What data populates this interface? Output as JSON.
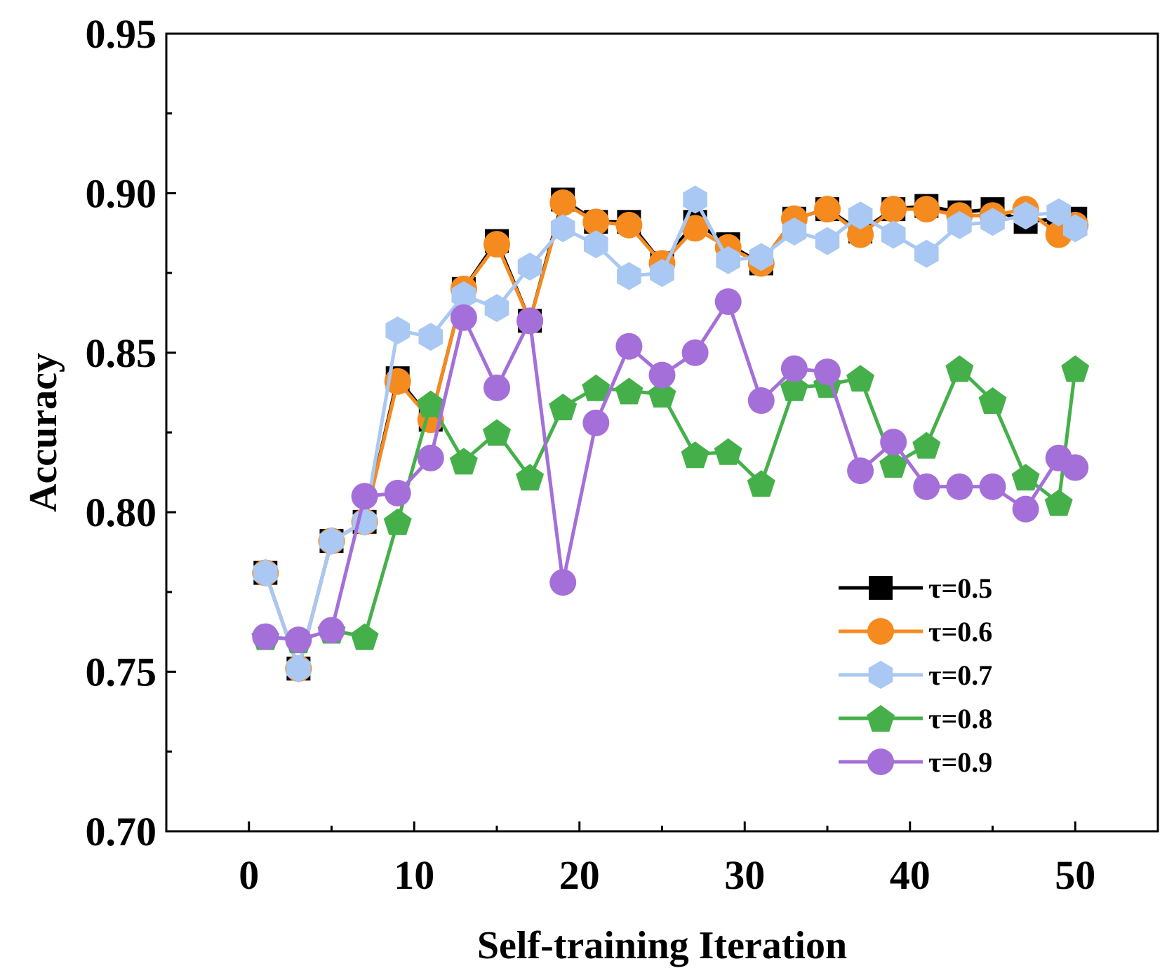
{
  "chart_data": {
    "type": "line",
    "title": "",
    "xlabel": "Self-training Iteration",
    "ylabel": "Accuracy",
    "xlim": [
      -5,
      55
    ],
    "ylim": [
      0.7,
      0.95
    ],
    "xticks": [
      0,
      10,
      20,
      30,
      40,
      50
    ],
    "xtick_labels": [
      "0",
      "10",
      "20",
      "30",
      "40",
      "50"
    ],
    "yticks": [
      0.7,
      0.75,
      0.8,
      0.85,
      0.9,
      0.95
    ],
    "ytick_labels": [
      "0.70",
      "0.75",
      "0.80",
      "0.85",
      "0.90",
      "0.95"
    ],
    "grid": false,
    "legend_position": "bottom-right",
    "x": [
      1,
      3,
      5,
      7,
      9,
      11,
      13,
      15,
      17,
      19,
      21,
      23,
      25,
      27,
      29,
      31,
      33,
      35,
      37,
      39,
      41,
      43,
      45,
      47,
      49,
      50
    ],
    "series": [
      {
        "name": "τ=0.5",
        "marker": "square",
        "color": "#000000",
        "values": [
          0.781,
          0.751,
          0.791,
          0.797,
          0.842,
          0.829,
          0.87,
          0.885,
          0.86,
          0.898,
          0.891,
          0.891,
          0.878,
          0.891,
          0.884,
          0.878,
          0.892,
          0.895,
          0.888,
          0.895,
          0.896,
          0.894,
          0.895,
          0.891,
          0.892,
          0.892
        ]
      },
      {
        "name": "τ=0.6",
        "marker": "circle",
        "color": "#F58A1F",
        "values": [
          0.781,
          0.751,
          0.791,
          0.797,
          0.841,
          0.829,
          0.87,
          0.884,
          0.86,
          0.897,
          0.891,
          0.89,
          0.878,
          0.889,
          0.883,
          0.878,
          0.892,
          0.895,
          0.887,
          0.895,
          0.895,
          0.893,
          0.893,
          0.895,
          0.887,
          0.89
        ]
      },
      {
        "name": "τ=0.7",
        "marker": "hexagon",
        "color": "#A9C8F3",
        "values": [
          0.781,
          0.751,
          0.791,
          0.797,
          0.857,
          0.855,
          0.868,
          0.864,
          0.877,
          0.889,
          0.884,
          0.874,
          0.875,
          0.898,
          0.879,
          0.88,
          0.888,
          0.885,
          0.893,
          0.887,
          0.881,
          0.89,
          0.891,
          0.893,
          0.894,
          0.889
        ]
      },
      {
        "name": "τ=0.8",
        "marker": "pentagon",
        "color": "#45B04A",
        "values": [
          0.761,
          0.76,
          0.763,
          0.761,
          0.797,
          0.834,
          0.816,
          0.825,
          0.811,
          0.833,
          0.839,
          0.838,
          0.837,
          0.818,
          0.819,
          0.809,
          0.839,
          0.84,
          0.842,
          0.815,
          0.821,
          0.845,
          0.835,
          0.811,
          0.803,
          0.845
        ]
      },
      {
        "name": "τ=0.9",
        "marker": "circle",
        "color": "#A46FD9",
        "values": [
          0.761,
          0.76,
          0.763,
          0.805,
          0.806,
          0.817,
          0.861,
          0.839,
          0.86,
          0.778,
          0.828,
          0.852,
          0.843,
          0.85,
          0.866,
          0.835,
          0.845,
          0.844,
          0.813,
          0.822,
          0.808,
          0.808,
          0.808,
          0.801,
          0.817,
          0.814
        ]
      }
    ]
  }
}
